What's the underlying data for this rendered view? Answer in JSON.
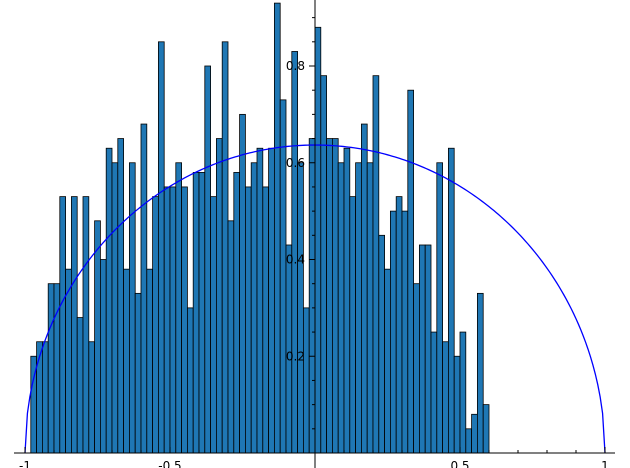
{
  "chart_data": {
    "type": "bar",
    "subtype": "histogram-with-density-curve",
    "title": "",
    "xlabel": "",
    "ylabel": "",
    "xlim": [
      -1,
      1
    ],
    "ylim": [
      0,
      0.95
    ],
    "grid": false,
    "legend": "none",
    "bin_width": 0.02,
    "bin_start": -0.98,
    "series": [
      {
        "name": "",
        "values": [
          0.2,
          0.23,
          0.23,
          0.35,
          0.35,
          0.53,
          0.38,
          0.53,
          0.28,
          0.53,
          0.23,
          0.48,
          0.4,
          0.63,
          0.6,
          0.65,
          0.38,
          0.6,
          0.33,
          0.68,
          0.38,
          0.53,
          0.85,
          0.55,
          0.55,
          0.6,
          0.55,
          0.3,
          0.58,
          0.58,
          0.8,
          0.53,
          0.65,
          0.85,
          0.48,
          0.58,
          0.7,
          0.55,
          0.6,
          0.63,
          0.55,
          0.63,
          0.93,
          0.73,
          0.43,
          0.83,
          0.6,
          0.3,
          0.65,
          0.88,
          0.78,
          0.65,
          0.65,
          0.6,
          0.63,
          0.53,
          0.6,
          0.68,
          0.6,
          0.78,
          0.45,
          0.38,
          0.5,
          0.53,
          0.5,
          0.75,
          0.35,
          0.43,
          0.43,
          0.25,
          0.6,
          0.23,
          0.63,
          0.2,
          0.25,
          0.05,
          0.08,
          0.33,
          0.1
        ]
      }
    ],
    "curve": {
      "name": "",
      "color": "#0000ff",
      "formula": "semicircle (2/pi)*sqrt(1-x^2)"
    },
    "bar_color": "#1f77b4",
    "x_ticks": [
      {
        "value": -1,
        "label": "-1"
      },
      {
        "value": -0.5,
        "label": "-0.5"
      },
      {
        "value": 0.5,
        "label": "0.5"
      },
      {
        "value": 1,
        "label": "1"
      }
    ],
    "y_ticks": [
      {
        "value": 0.2,
        "label": "0.2"
      },
      {
        "value": 0.4,
        "label": "0.4"
      },
      {
        "value": 0.6,
        "label": "0.6"
      },
      {
        "value": 0.8,
        "label": "0.8"
      }
    ]
  }
}
